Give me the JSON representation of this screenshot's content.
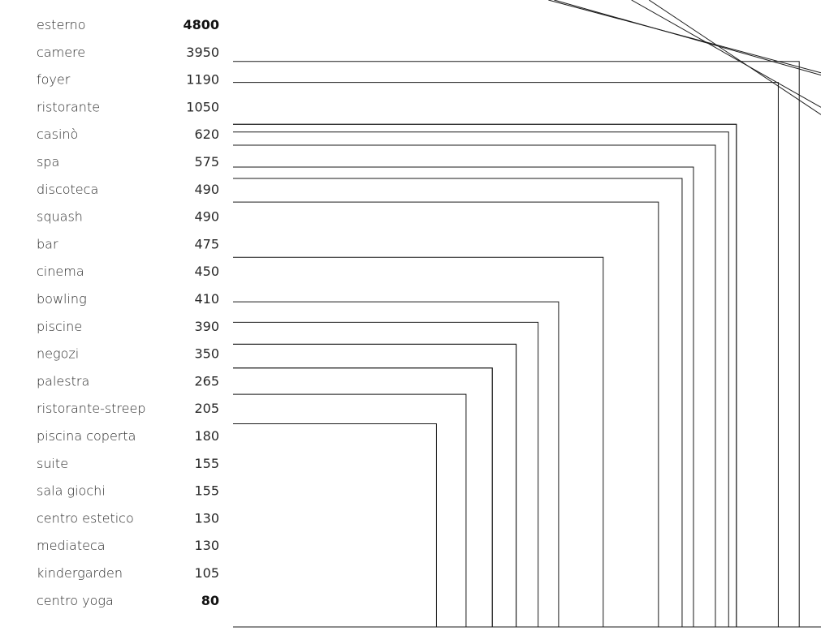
{
  "chart_data": {
    "type": "nested-squares",
    "items": [
      {
        "label": "esterno",
        "value": 4800
      },
      {
        "label": "camere",
        "value": 3950
      },
      {
        "label": "foyer",
        "value": 1190
      },
      {
        "label": "ristorante",
        "value": 1050
      },
      {
        "label": "casinò",
        "value": 620
      },
      {
        "label": "spa",
        "value": 575
      },
      {
        "label": "discoteca",
        "value": 490
      },
      {
        "label": "squash",
        "value": 490
      },
      {
        "label": "bar",
        "value": 475
      },
      {
        "label": "cinema",
        "value": 450
      },
      {
        "label": "bowling",
        "value": 410
      },
      {
        "label": "piscine",
        "value": 390
      },
      {
        "label": "negozi",
        "value": 350
      },
      {
        "label": "palestra",
        "value": 265
      },
      {
        "label": "ristorante-streep",
        "value": 205
      },
      {
        "label": "piscina coperta",
        "value": 180
      },
      {
        "label": "suite",
        "value": 155
      },
      {
        "label": "sala giochi",
        "value": 155
      },
      {
        "label": "centro estetico",
        "value": 130
      },
      {
        "label": "mediateca",
        "value": 130
      },
      {
        "label": "kindergarden",
        "value": 105
      },
      {
        "label": "centro yoga",
        "value": 80
      }
    ],
    "bold_values": [
      4800,
      80
    ]
  }
}
